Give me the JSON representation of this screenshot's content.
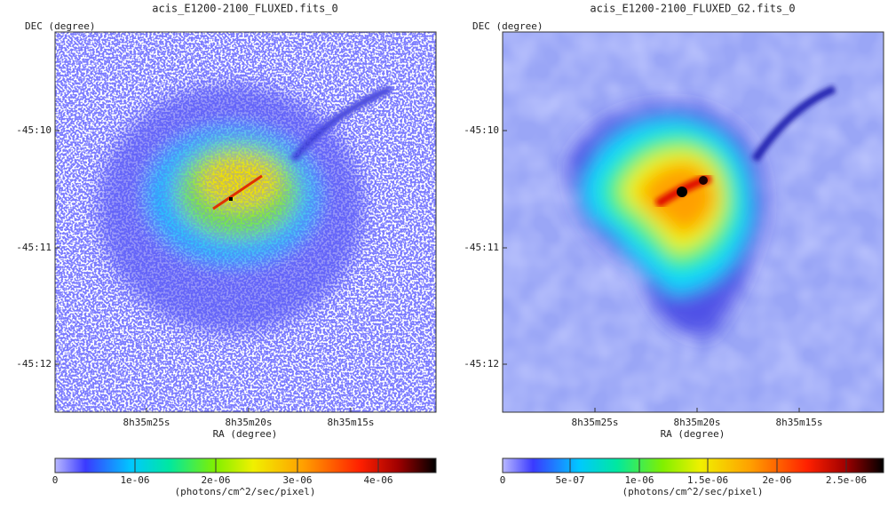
{
  "panels": [
    {
      "title": "acis_E1200-2100_FLUXED.fits_0",
      "ylabel": "DEC (degree)",
      "yticks": [
        "-45:10",
        "-45:11",
        "-45:12"
      ],
      "xlabel": "RA (degree)",
      "xticks": [
        "8h35m25s",
        "8h35m20s",
        "8h35m15s"
      ],
      "cbar_ticks": [
        "0",
        "1e-06",
        "2e-06",
        "3e-06",
        "4e-06"
      ],
      "cbar_label": "(photons/cm^2/sec/pixel)"
    },
    {
      "title": "acis_E1200-2100_FLUXED_G2.fits_0",
      "ylabel": "DEC (degree)",
      "yticks": [
        "-45:10",
        "-45:11",
        "-45:12"
      ],
      "xlabel": "RA (degree)",
      "xticks": [
        "8h35m25s",
        "8h35m20s",
        "8h35m15s"
      ],
      "cbar_ticks": [
        "0",
        "5e-07",
        "1e-06",
        "1.5e-06",
        "2e-06",
        "2.5e-06"
      ],
      "cbar_label": "(photons/cm^2/sec/pixel)"
    }
  ]
}
